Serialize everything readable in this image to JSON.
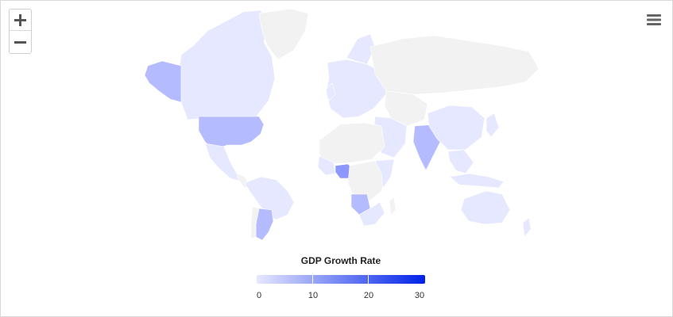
{
  "controls": {
    "zoom_in_icon": "plus-icon",
    "zoom_out_icon": "minus-icon",
    "menu_icon": "hamburger-icon"
  },
  "legend": {
    "title": "GDP Growth Rate",
    "min": 0,
    "max": 30,
    "ticks": [
      "0",
      "10",
      "20",
      "30"
    ],
    "color_low": "#e6e8ff",
    "color_high": "#0022e8"
  },
  "colors": {
    "no_data": "#f2f2f2",
    "low": "#e6e8ff",
    "mid": "#b4bcff"
  }
}
